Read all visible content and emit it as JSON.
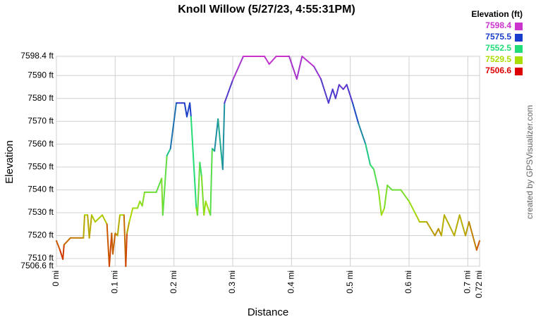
{
  "chart_data": {
    "type": "line",
    "title": "Knoll Willow (5/27/23, 4:55:31PM)",
    "x_label": "Distance",
    "y_label": "Elevation",
    "credit": "created by GPSVisualizer.com",
    "legend_title": "Elevation (ft)",
    "color_scale": {
      "values": [
        7598.4,
        7575.5,
        7552.5,
        7529.5,
        7506.6
      ],
      "colors": [
        "#cc33cc",
        "#1a3ccc",
        "#22dd77",
        "#aadd00",
        "#dd0000"
      ]
    },
    "xlim": [
      0,
      0.72
    ],
    "ylim": [
      7506.6,
      7598.4
    ],
    "xticks": [
      {
        "value": 0,
        "label": "0 mi"
      },
      {
        "value": 0.1,
        "label": "0.1 mi"
      },
      {
        "value": 0.2,
        "label": "0.2 mi"
      },
      {
        "value": 0.3,
        "label": "0.3 mi"
      },
      {
        "value": 0.4,
        "label": "0.4 mi"
      },
      {
        "value": 0.5,
        "label": "0.5 mi"
      },
      {
        "value": 0.6,
        "label": "0.6 mi"
      },
      {
        "value": 0.7,
        "label": "0.7 mi"
      },
      {
        "value": 0.72,
        "label": "0.72 mi"
      }
    ],
    "yticks": [
      {
        "value": 7506.6,
        "label": "7506.6 ft"
      },
      {
        "value": 7510,
        "label": "7510 ft"
      },
      {
        "value": 7520,
        "label": "7520 ft"
      },
      {
        "value": 7530,
        "label": "7530 ft"
      },
      {
        "value": 7540,
        "label": "7540 ft"
      },
      {
        "value": 7550,
        "label": "7550 ft"
      },
      {
        "value": 7560,
        "label": "7560 ft"
      },
      {
        "value": 7570,
        "label": "7570 ft"
      },
      {
        "value": 7580,
        "label": "7580 ft"
      },
      {
        "value": 7590,
        "label": "7590 ft"
      },
      {
        "value": 7598.4,
        "label": "7598.4 ft"
      }
    ],
    "grid": true,
    "x": [
      0,
      0.006,
      0.011,
      0.013,
      0.024,
      0.046,
      0.048,
      0.053,
      0.056,
      0.06,
      0.066,
      0.078,
      0.086,
      0.09,
      0.094,
      0.096,
      0.1,
      0.104,
      0.108,
      0.115,
      0.118,
      0.12,
      0.124,
      0.13,
      0.138,
      0.142,
      0.146,
      0.15,
      0.17,
      0.179,
      0.181,
      0.188,
      0.194,
      0.204,
      0.218,
      0.222,
      0.227,
      0.229,
      0.238,
      0.24,
      0.244,
      0.247,
      0.251,
      0.254,
      0.262,
      0.265,
      0.269,
      0.275,
      0.283,
      0.286,
      0.3,
      0.318,
      0.354,
      0.362,
      0.374,
      0.396,
      0.409,
      0.418,
      0.438,
      0.45,
      0.463,
      0.47,
      0.475,
      0.481,
      0.488,
      0.494,
      0.504,
      0.514,
      0.526,
      0.534,
      0.54,
      0.548,
      0.553,
      0.558,
      0.563,
      0.571,
      0.586,
      0.6,
      0.612,
      0.618,
      0.63,
      0.644,
      0.65,
      0.655,
      0.66,
      0.677,
      0.686,
      0.696,
      0.702,
      0.715,
      0.72
    ],
    "values": [
      7517.7,
      7513.7,
      7509.7,
      7516,
      7519,
      7519,
      7529,
      7529,
      7519,
      7529,
      7526,
      7529,
      7525,
      7506.6,
      7521,
      7512,
      7521,
      7520,
      7529,
      7529,
      7506.6,
      7521,
      7526,
      7532,
      7532,
      7535,
      7533,
      7539,
      7539,
      7545,
      7529,
      7555,
      7558,
      7578,
      7578,
      7572,
      7578,
      7572,
      7532,
      7529,
      7552,
      7546,
      7529,
      7535,
      7529,
      7558,
      7557,
      7571,
      7549,
      7578,
      7588,
      7598.4,
      7598.4,
      7595,
      7598.4,
      7598.4,
      7588.5,
      7598.4,
      7594,
      7588.5,
      7578,
      7584,
      7580,
      7586,
      7584,
      7586,
      7578,
      7569,
      7560,
      7551,
      7549,
      7540,
      7529,
      7532,
      7542,
      7540,
      7540,
      7535,
      7529,
      7526,
      7526,
      7520,
      7523,
      7520,
      7529,
      7520,
      7529,
      7520,
      7526,
      7513.7,
      7517.7
    ]
  }
}
